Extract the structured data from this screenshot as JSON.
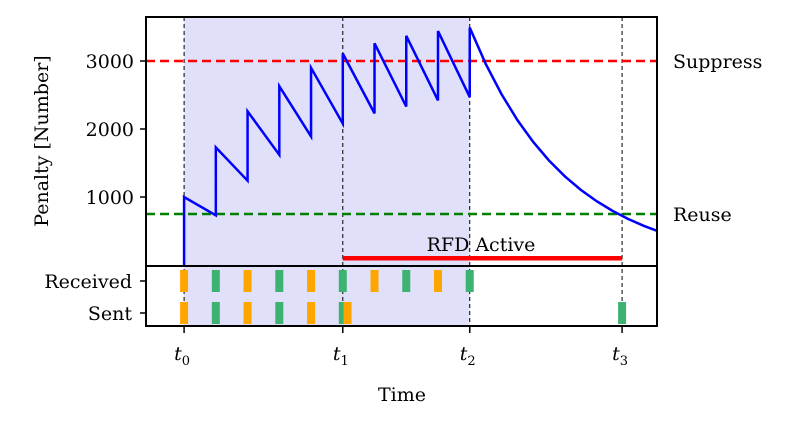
{
  "chart_data": {
    "type": "line",
    "xlabel": "Time",
    "ylabel": "Penalty [Number]",
    "xlim": [
      -1.2,
      14.9
    ],
    "ylim": [
      0,
      3647
    ],
    "grid": false,
    "yticks": [
      1000,
      2000,
      3000
    ],
    "xticks": [
      {
        "value": 0,
        "label": "t",
        "sub": "0"
      },
      {
        "value": 5,
        "label": "t",
        "sub": "1"
      },
      {
        "value": 9,
        "label": "t",
        "sub": "2"
      },
      {
        "value": 13.8,
        "label": "t",
        "sub": "3"
      }
    ],
    "series": [
      {
        "color": "#0000ff",
        "points": [
          [
            0,
            0
          ],
          [
            0,
            1000
          ],
          [
            1,
            730
          ],
          [
            1,
            1730
          ],
          [
            2,
            1240
          ],
          [
            2,
            2260
          ],
          [
            3,
            1620
          ],
          [
            3,
            2630
          ],
          [
            4,
            1890
          ],
          [
            4,
            2900
          ],
          [
            5,
            2080
          ],
          [
            5,
            3110
          ],
          [
            6,
            2230
          ],
          [
            6,
            3260
          ],
          [
            7,
            2330
          ],
          [
            7,
            3370
          ],
          [
            8,
            2420
          ],
          [
            8,
            3440
          ],
          [
            9,
            2470
          ],
          [
            9,
            3490
          ],
          [
            9.5,
            2961
          ],
          [
            10,
            2513
          ],
          [
            10.5,
            2132
          ],
          [
            11,
            1809
          ],
          [
            11.5,
            1535
          ],
          [
            12,
            1303
          ],
          [
            12.5,
            1105
          ],
          [
            13,
            938
          ],
          [
            13.5,
            796
          ],
          [
            14,
            675
          ],
          [
            14.5,
            573
          ],
          [
            14.9,
            503
          ]
        ]
      }
    ],
    "thresholds": [
      {
        "label": "Suppress",
        "value": 3000,
        "color": "#ff0000"
      },
      {
        "label": "Reuse",
        "value": 750,
        "color": "#008000"
      }
    ],
    "shaded_region": {
      "from": 0,
      "to": 9,
      "color": "#e0e0fa"
    },
    "rfd_active": {
      "label": "RFD Active",
      "from": 5,
      "to": 13.8,
      "value": 100,
      "color": "#ff0000"
    },
    "event_rows": [
      {
        "label": "Received",
        "events": [
          {
            "x": 0,
            "type": "orange"
          },
          {
            "x": 1,
            "type": "green"
          },
          {
            "x": 2,
            "type": "orange"
          },
          {
            "x": 3,
            "type": "green"
          },
          {
            "x": 4,
            "type": "orange"
          },
          {
            "x": 5,
            "type": "green"
          },
          {
            "x": 6,
            "type": "orange"
          },
          {
            "x": 7,
            "type": "green"
          },
          {
            "x": 8,
            "type": "orange"
          },
          {
            "x": 9,
            "type": "green"
          }
        ]
      },
      {
        "label": "Sent",
        "events": [
          {
            "x": 0,
            "type": "orange"
          },
          {
            "x": 1,
            "type": "green"
          },
          {
            "x": 2,
            "type": "orange"
          },
          {
            "x": 3,
            "type": "green"
          },
          {
            "x": 4,
            "type": "orange"
          },
          {
            "x": 5,
            "type": "green"
          },
          {
            "x": 5.15,
            "type": "orange"
          },
          {
            "x": 13.8,
            "type": "green"
          }
        ]
      }
    ],
    "event_colors": {
      "orange": "#ffa500",
      "green": "#3cb371"
    }
  }
}
